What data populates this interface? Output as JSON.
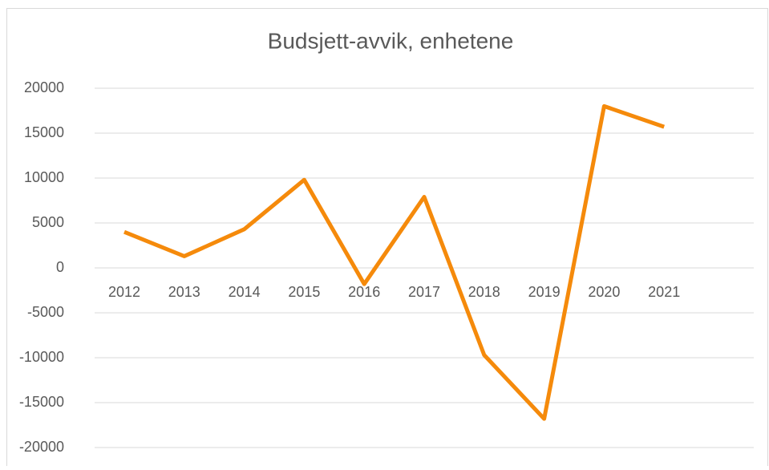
{
  "chart_data": {
    "type": "line",
    "title": "Budsjett-avvik, enhetene",
    "categories": [
      "2012",
      "2013",
      "2014",
      "2015",
      "2016",
      "2017",
      "2018",
      "2019",
      "2020",
      "2021"
    ],
    "series": [
      {
        "name": "Budsjett-avvik",
        "color": "#f58a0b",
        "values": [
          4000,
          1300,
          4300,
          9800,
          -1800,
          7900,
          -9700,
          -16800,
          18000,
          15700
        ]
      }
    ],
    "ylim": [
      -20000,
      20000
    ],
    "yticks": [
      -20000,
      -15000,
      -10000,
      -5000,
      0,
      5000,
      10000,
      15000,
      20000
    ],
    "grid": true
  }
}
